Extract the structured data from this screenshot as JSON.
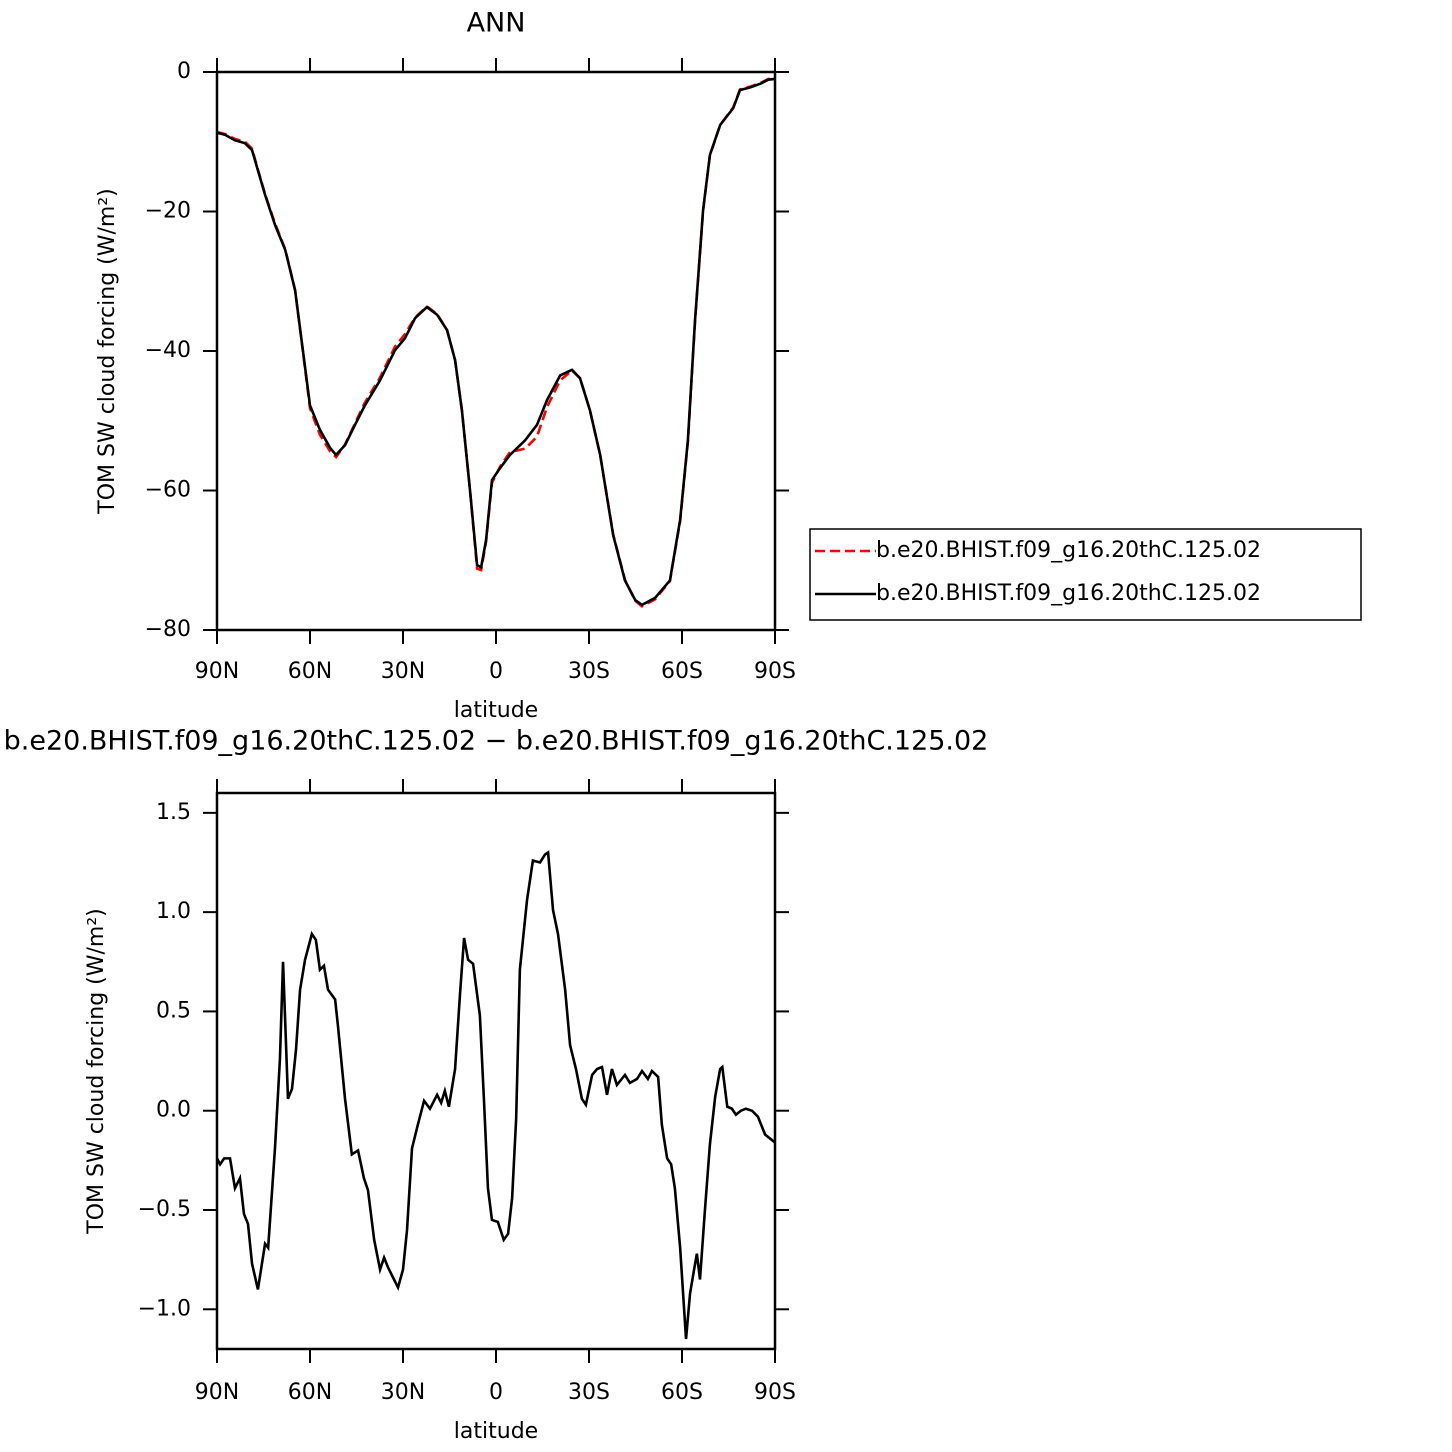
{
  "chart_data": [
    {
      "type": "line",
      "title": "ANN",
      "ylabel": "TOM SW cloud forcing (W/m²)",
      "xlabel": "latitude",
      "x": [
        90,
        87.4,
        84.2,
        81,
        78.7,
        76.8,
        74.5,
        71.3,
        68,
        64.8,
        62.3,
        60,
        56.8,
        53.5,
        51.6,
        48.7,
        45.5,
        42.3,
        37.4,
        32.6,
        29.4,
        26.1,
        22.3,
        19,
        15.8,
        13.2,
        11,
        8.4,
        6.1,
        4.8,
        3.2,
        1.3,
        -1.3,
        -4.5,
        -9.4,
        -13.2,
        -16.5,
        -20.7,
        -24.5,
        -27.1,
        -30.3,
        -33.6,
        -37.8,
        -41.6,
        -44.9,
        -47.1,
        -51.3,
        -56.1,
        -59.4,
        -61.9,
        -64.2,
        -66.8,
        -69,
        -72.3,
        -76.5,
        -78.7,
        -82,
        -85.2,
        -87.8,
        -90
      ],
      "series": [
        {
          "name": "b.e20.BHIST.f09_g16.20thC.125.02",
          "color": "#ff0000",
          "linestyle": "dashed",
          "values": [
            -8.6,
            -8.9,
            -9.6,
            -10.0,
            -11.0,
            -14.0,
            -17.5,
            -21.7,
            -25.4,
            -31.3,
            -40.0,
            -48.2,
            -52.0,
            -54.4,
            -55.2,
            -53.4,
            -50.4,
            -47.4,
            -43.8,
            -39.4,
            -37.6,
            -35.2,
            -33.6,
            -34.7,
            -37.0,
            -41.3,
            -48.5,
            -59.9,
            -71.2,
            -71.4,
            -67.3,
            -58.9,
            -56.6,
            -54.5,
            -54.0,
            -52.3,
            -48.0,
            -44.2,
            -42.8,
            -43.9,
            -48.5,
            -54.9,
            -66.3,
            -72.8,
            -75.8,
            -76.6,
            -75.6,
            -73.0,
            -64.4,
            -53.0,
            -35.8,
            -19.9,
            -12.0,
            -7.6,
            -5.1,
            -2.5,
            -2.1,
            -1.6,
            -1.0,
            -0.9
          ]
        },
        {
          "name": "b.e20.BHIST.f09_g16.20thC.125.02",
          "color": "#000000",
          "linestyle": "solid",
          "values": [
            -8.7,
            -9.0,
            -9.8,
            -10.2,
            -11.2,
            -14.1,
            -17.6,
            -21.9,
            -25.5,
            -31.3,
            -39.9,
            -47.8,
            -51.3,
            -53.9,
            -54.9,
            -53.5,
            -50.6,
            -47.8,
            -44.2,
            -39.9,
            -38.2,
            -35.3,
            -33.7,
            -34.8,
            -37.0,
            -41.3,
            -48.5,
            -59.9,
            -70.7,
            -71.0,
            -67.1,
            -58.5,
            -56.8,
            -54.9,
            -52.8,
            -50.6,
            -47.0,
            -43.5,
            -42.7,
            -43.9,
            -48.5,
            -54.9,
            -66.4,
            -72.9,
            -75.7,
            -76.4,
            -75.4,
            -72.9,
            -64.2,
            -52.8,
            -35.6,
            -19.8,
            -11.9,
            -7.6,
            -5.2,
            -2.6,
            -2.2,
            -1.7,
            -1.1,
            -1.0
          ]
        }
      ],
      "xlim": [
        90,
        -90
      ],
      "xticks": [
        {
          "value": 90,
          "label": "90N"
        },
        {
          "value": 60,
          "label": "60N"
        },
        {
          "value": 30,
          "label": "30N"
        },
        0,
        {
          "value": -30,
          "label": "30S"
        },
        {
          "value": -60,
          "label": "60S"
        },
        {
          "value": -90,
          "label": "90S"
        }
      ],
      "ylim": [
        -80,
        0
      ],
      "yticks": [
        0,
        {
          "value": -20,
          "label": "−20"
        },
        {
          "value": -40,
          "label": "−40"
        },
        {
          "value": -60,
          "label": "−60"
        },
        {
          "value": -80,
          "label": "−80"
        }
      ],
      "legend": "right"
    },
    {
      "type": "line",
      "title": "b.e20.BHIST.f09_g16.20thC.125.02 − b.e20.BHIST.f09_g16.20thC.125.02",
      "ylabel": "TOM SW cloud forcing (W/m²)",
      "xlabel": "latitude",
      "x": [
        90,
        89,
        87.7,
        85.8,
        84.2,
        82.6,
        81.3,
        80,
        78.7,
        76.8,
        74.5,
        73.5,
        71.3,
        69.7,
        68.7,
        67.1,
        65.8,
        64.5,
        63.2,
        61.6,
        59.4,
        58.1,
        56.8,
        55.5,
        54.2,
        51.9,
        51,
        48.7,
        46.5,
        44.5,
        42.6,
        41.3,
        39.3,
        37.4,
        36.1,
        34.8,
        32.9,
        31.6,
        30,
        28.7,
        27.1,
        25.2,
        23.2,
        21.3,
        19,
        17.7,
        16.5,
        15.2,
        13.2,
        11.6,
        10.3,
        9,
        7.4,
        5.2,
        3.9,
        2.6,
        1.3,
        -0.6,
        -2.5,
        -3.9,
        -5.2,
        -6.5,
        -7.7,
        -10,
        -11.9,
        -14.2,
        -15.8,
        -16.8,
        -18.4,
        -20,
        -22.3,
        -23.9,
        -25.8,
        -27.7,
        -29,
        -31,
        -32.6,
        -34.2,
        -35.8,
        -37.4,
        -39,
        -41.6,
        -43.2,
        -45.5,
        -47.1,
        -49,
        -50.3,
        -52.3,
        -53.5,
        -55.2,
        -56.5,
        -57.7,
        -59.4,
        -61.3,
        -62.6,
        -63.9,
        -64.8,
        -65.8,
        -67.4,
        -69,
        -70.7,
        -72.3,
        -73,
        -74.6,
        -76.1,
        -77.4,
        -79,
        -80.6,
        -82.6,
        -84.5,
        -86.8,
        -90
      ],
      "series": [
        {
          "color": "#000000",
          "linestyle": "solid",
          "values": [
            -0.24,
            -0.27,
            -0.24,
            -0.24,
            -0.39,
            -0.34,
            -0.52,
            -0.57,
            -0.77,
            -0.9,
            -0.67,
            -0.69,
            -0.19,
            0.26,
            0.75,
            0.06,
            0.11,
            0.31,
            0.61,
            0.76,
            0.89,
            0.86,
            0.71,
            0.73,
            0.61,
            0.56,
            0.43,
            0.06,
            -0.22,
            -0.2,
            -0.34,
            -0.4,
            -0.65,
            -0.8,
            -0.74,
            -0.79,
            -0.85,
            -0.89,
            -0.8,
            -0.6,
            -0.19,
            -0.07,
            0.05,
            0.01,
            0.08,
            0.04,
            0.1,
            0.02,
            0.21,
            0.59,
            0.87,
            0.76,
            0.74,
            0.48,
            0.06,
            -0.39,
            -0.55,
            -0.56,
            -0.65,
            -0.62,
            -0.44,
            -0.04,
            0.71,
            1.06,
            1.26,
            1.25,
            1.29,
            1.3,
            1.01,
            0.89,
            0.61,
            0.33,
            0.21,
            0.06,
            0.03,
            0.18,
            0.21,
            0.22,
            0.08,
            0.21,
            0.13,
            0.18,
            0.14,
            0.16,
            0.2,
            0.16,
            0.2,
            0.17,
            -0.07,
            -0.24,
            -0.27,
            -0.39,
            -0.69,
            -1.15,
            -0.92,
            -0.8,
            -0.72,
            -0.85,
            -0.5,
            -0.17,
            0.07,
            0.21,
            0.22,
            0.02,
            0.01,
            -0.02,
            0.0,
            0.01,
            0.0,
            -0.03,
            -0.12,
            -0.16
          ]
        }
      ],
      "xlim": [
        90,
        -90
      ],
      "xticks": [
        {
          "value": 90,
          "label": "90N"
        },
        {
          "value": 60,
          "label": "60N"
        },
        {
          "value": 30,
          "label": "30N"
        },
        0,
        {
          "value": -30,
          "label": "30S"
        },
        {
          "value": -60,
          "label": "60S"
        },
        {
          "value": -90,
          "label": "90S"
        }
      ],
      "ylim": [
        -1.2,
        1.6
      ],
      "yticks": [
        1.5,
        {
          "value": 1.0,
          "label": "1.0"
        },
        0.5,
        {
          "value": 0.0,
          "label": "0.0"
        },
        {
          "value": -0.5,
          "label": "−0.5"
        },
        {
          "value": -1.0,
          "label": "−1.0"
        }
      ]
    }
  ]
}
